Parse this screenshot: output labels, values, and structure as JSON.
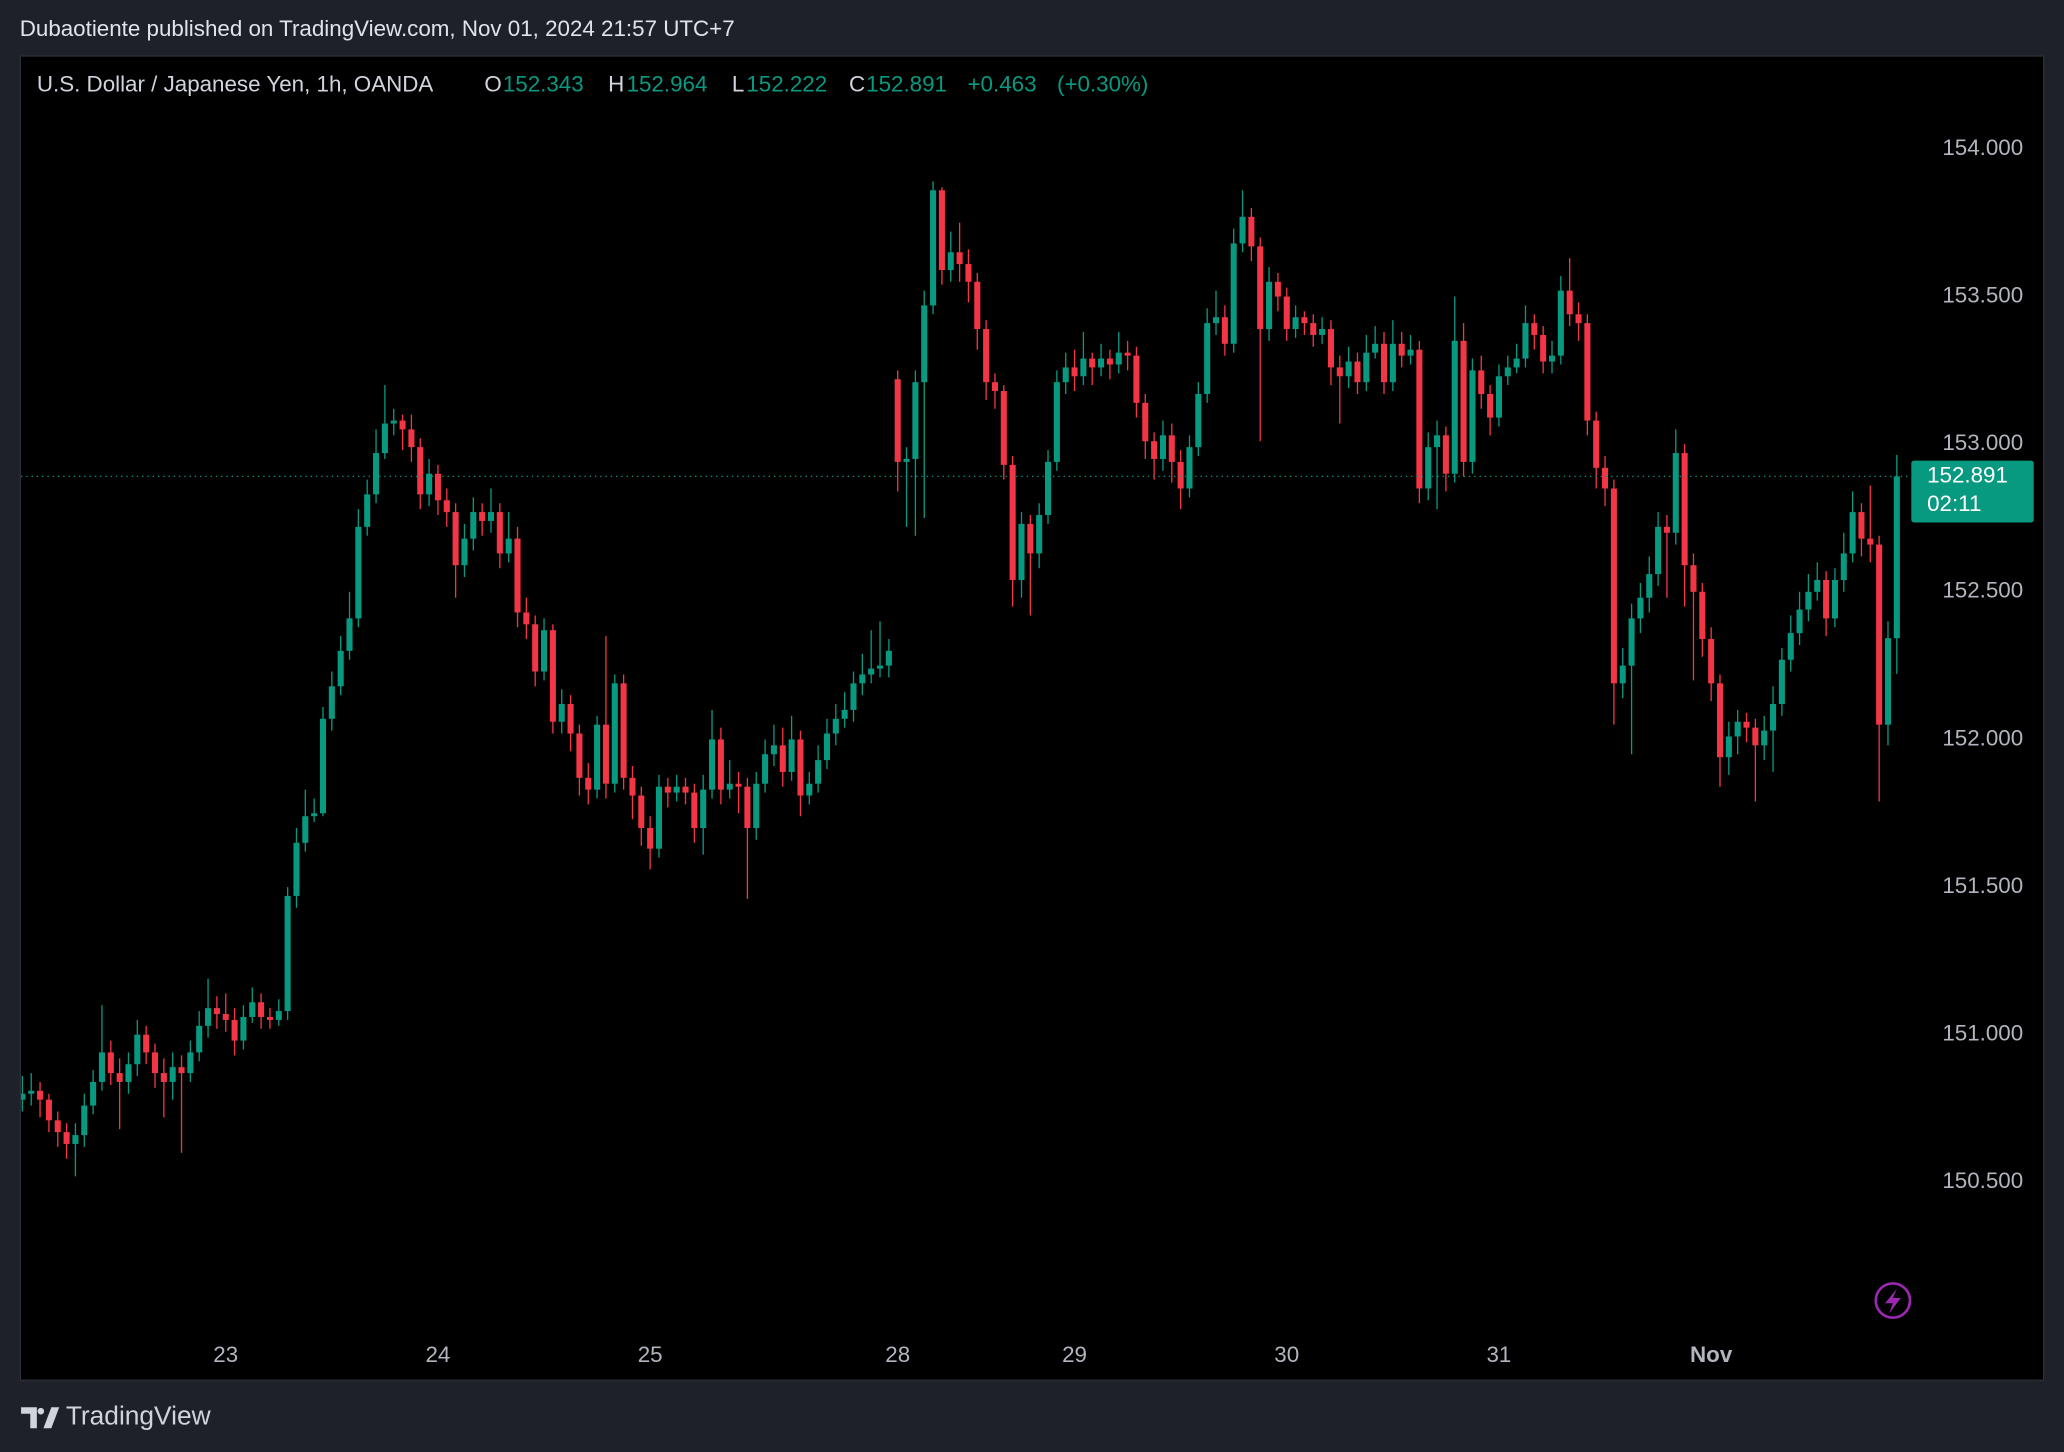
{
  "header": {
    "attribution": "Dubaotiente published on TradingView.com, Nov 01, 2024 21:57 UTC+7"
  },
  "footer": {
    "brand": "TradingView"
  },
  "chart_data": {
    "type": "candlestick",
    "symbol": "U.S. Dollar / Japanese Yen, 1h, OANDA",
    "legend_labels": {
      "open": "O",
      "high": "H",
      "low": "L",
      "close": "C"
    },
    "change": {
      "value": 0.463,
      "label": "+0.463"
    },
    "change_percent": {
      "value": 0.3,
      "label": "(+0.30%)"
    },
    "countdown": "02:11",
    "up_color": "#089981",
    "down_color": "#f23645",
    "grid": false,
    "ylim": [
      149.832,
      154.317
    ],
    "yticks": [
      {
        "value": 150.5,
        "label": "150.500"
      },
      {
        "value": 151,
        "label": "151.000"
      },
      {
        "value": 151.5,
        "label": "151.500"
      },
      {
        "value": 152,
        "label": "152.000"
      },
      {
        "value": 152.5,
        "label": "152.500"
      },
      {
        "value": 153,
        "label": "153.000"
      },
      {
        "value": 153.5,
        "label": "153.500"
      },
      {
        "value": 154,
        "label": "154.000"
      }
    ],
    "categories": [
      null,
      null,
      null,
      null,
      null,
      null,
      null,
      null,
      null,
      null,
      null,
      null,
      null,
      null,
      null,
      null,
      null,
      null,
      null,
      null,
      null,
      null,
      null,
      "23",
      null,
      null,
      null,
      null,
      null,
      null,
      null,
      null,
      null,
      null,
      null,
      null,
      null,
      null,
      null,
      null,
      null,
      null,
      null,
      null,
      null,
      null,
      null,
      "24",
      null,
      null,
      null,
      null,
      null,
      null,
      null,
      null,
      null,
      null,
      null,
      null,
      null,
      null,
      null,
      null,
      null,
      null,
      null,
      null,
      null,
      null,
      null,
      "25",
      null,
      null,
      null,
      null,
      null,
      null,
      null,
      null,
      null,
      null,
      null,
      null,
      null,
      null,
      null,
      null,
      null,
      null,
      null,
      null,
      null,
      null,
      null,
      null,
      null,
      null,
      null,
      "28",
      null,
      null,
      null,
      null,
      null,
      null,
      null,
      null,
      null,
      null,
      null,
      null,
      null,
      null,
      null,
      null,
      null,
      null,
      null,
      "29",
      null,
      null,
      null,
      null,
      null,
      null,
      null,
      null,
      null,
      null,
      null,
      null,
      null,
      null,
      null,
      null,
      null,
      null,
      null,
      null,
      null,
      null,
      null,
      "30",
      null,
      null,
      null,
      null,
      null,
      null,
      null,
      null,
      null,
      null,
      null,
      null,
      null,
      null,
      null,
      null,
      null,
      null,
      null,
      null,
      null,
      null,
      null,
      "31",
      null,
      null,
      null,
      null,
      null,
      null,
      null,
      null,
      null,
      null,
      null,
      null,
      null,
      null,
      null,
      null,
      null,
      null,
      null,
      null,
      null,
      null,
      null,
      "Nov",
      null,
      null,
      null,
      null,
      null,
      null,
      null,
      null,
      null,
      null,
      null,
      null,
      null,
      null,
      null,
      null,
      null,
      null,
      null,
      null,
      null
    ],
    "open": [
      150.78,
      150.8,
      150.81,
      150.78,
      150.71,
      150.67,
      150.63,
      150.66,
      150.76,
      150.84,
      150.94,
      150.87,
      150.84,
      150.9,
      151.0,
      150.94,
      150.87,
      150.84,
      150.89,
      150.87,
      150.94,
      151.03,
      151.09,
      151.07,
      151.05,
      150.98,
      151.06,
      151.11,
      151.06,
      151.05,
      151.08,
      151.47,
      151.65,
      151.74,
      151.75,
      152.07,
      152.18,
      152.3,
      152.41,
      152.72,
      152.83,
      152.97,
      153.07,
      153.08,
      153.05,
      152.99,
      152.83,
      152.9,
      152.81,
      152.77,
      152.59,
      152.68,
      152.77,
      152.74,
      152.77,
      152.63,
      152.68,
      152.43,
      152.39,
      152.23,
      152.37,
      152.06,
      152.12,
      152.02,
      151.87,
      151.83,
      152.05,
      151.85,
      152.19,
      151.87,
      151.81,
      151.7,
      151.63,
      151.84,
      151.82,
      151.84,
      151.82,
      151.7,
      151.83,
      152.0,
      151.83,
      151.85,
      151.84,
      151.7,
      151.85,
      151.95,
      151.98,
      151.89,
      152.0,
      151.81,
      151.85,
      151.93,
      152.02,
      152.07,
      152.1,
      152.19,
      152.22,
      152.24,
      152.25,
      153.22,
      152.94,
      152.95,
      153.21,
      153.47,
      153.86,
      153.59,
      153.65,
      153.61,
      153.55,
      153.39,
      153.21,
      153.18,
      152.93,
      152.54,
      152.73,
      152.63,
      152.76,
      152.94,
      153.21,
      153.26,
      153.23,
      153.29,
      153.26,
      153.29,
      153.27,
      153.31,
      153.3,
      153.14,
      153.01,
      152.95,
      153.03,
      152.94,
      152.85,
      152.99,
      153.17,
      153.41,
      153.43,
      153.34,
      153.68,
      153.77,
      153.67,
      153.39,
      153.55,
      153.5,
      153.39,
      153.43,
      153.41,
      153.37,
      153.39,
      153.26,
      153.23,
      153.28,
      153.21,
      153.31,
      153.34,
      153.21,
      153.34,
      153.3,
      153.32,
      152.85,
      152.99,
      153.03,
      152.9,
      153.35,
      152.94,
      153.25,
      153.17,
      153.09,
      153.23,
      153.26,
      153.29,
      153.41,
      153.37,
      153.28,
      153.3,
      153.52,
      153.44,
      153.41,
      153.08,
      152.92,
      152.85,
      152.19,
      152.25,
      152.41,
      152.48,
      152.56,
      152.72,
      152.7,
      152.97,
      152.59,
      152.5,
      152.34,
      152.19,
      151.94,
      152.01,
      152.06,
      152.04,
      151.98,
      152.03,
      152.12,
      152.27,
      152.36,
      152.44,
      152.5,
      152.54,
      152.41,
      152.54,
      152.63,
      152.77,
      152.68,
      152.66,
      152.05,
      152.343
    ],
    "high": [
      150.86,
      150.87,
      150.84,
      150.8,
      150.74,
      150.7,
      150.7,
      150.8,
      150.88,
      151.1,
      150.98,
      150.92,
      150.94,
      151.05,
      151.03,
      150.97,
      150.92,
      150.94,
      150.93,
      150.98,
      151.08,
      151.19,
      151.13,
      151.14,
      151.09,
      151.1,
      151.16,
      151.14,
      151.09,
      151.12,
      151.5,
      151.7,
      151.83,
      151.8,
      152.11,
      152.23,
      152.35,
      152.5,
      152.78,
      152.88,
      153.05,
      153.2,
      153.12,
      153.1,
      153.1,
      153.02,
      152.95,
      152.93,
      152.85,
      152.8,
      152.73,
      152.82,
      152.8,
      152.85,
      152.8,
      152.77,
      152.72,
      152.48,
      152.42,
      152.41,
      152.39,
      152.17,
      152.15,
      152.05,
      151.92,
      152.08,
      152.35,
      152.22,
      152.22,
      151.91,
      151.84,
      151.74,
      151.88,
      151.87,
      151.88,
      151.87,
      151.85,
      151.88,
      152.1,
      152.04,
      151.93,
      151.89,
      151.87,
      151.89,
      152.0,
      152.05,
      152.04,
      152.08,
      152.03,
      151.89,
      151.98,
      152.07,
      152.12,
      152.16,
      152.23,
      152.29,
      152.37,
      152.4,
      152.34,
      153.25,
      152.99,
      153.25,
      153.52,
      153.89,
      153.87,
      153.72,
      153.75,
      153.66,
      153.58,
      153.42,
      153.24,
      153.2,
      152.96,
      152.77,
      152.76,
      152.8,
      152.98,
      153.25,
      153.31,
      153.32,
      153.38,
      153.31,
      153.34,
      153.32,
      153.38,
      153.35,
      153.33,
      153.17,
      153.04,
      153.08,
      153.07,
      152.98,
      153.03,
      153.21,
      153.46,
      153.52,
      153.47,
      153.73,
      153.86,
      153.8,
      153.7,
      153.6,
      153.58,
      153.53,
      153.47,
      153.45,
      153.44,
      153.43,
      153.42,
      153.3,
      153.33,
      153.31,
      153.37,
      153.4,
      153.38,
      153.42,
      153.38,
      153.37,
      153.35,
      153.04,
      153.08,
      153.06,
      153.5,
      153.41,
      153.29,
      153.3,
      153.2,
      153.27,
      153.3,
      153.34,
      153.47,
      153.44,
      153.4,
      153.35,
      153.57,
      153.63,
      153.48,
      153.44,
      153.11,
      152.96,
      152.88,
      152.31,
      152.46,
      152.53,
      152.62,
      152.77,
      152.76,
      153.05,
      153.0,
      152.63,
      152.53,
      152.38,
      152.22,
      152.06,
      152.1,
      152.09,
      152.07,
      152.08,
      152.18,
      152.31,
      152.42,
      152.5,
      152.56,
      152.6,
      152.57,
      152.58,
      152.7,
      152.84,
      152.8,
      152.86,
      152.69,
      152.4,
      152.964
    ],
    "low": [
      150.74,
      150.76,
      150.72,
      150.67,
      150.62,
      150.58,
      150.52,
      150.62,
      150.73,
      150.81,
      150.83,
      150.68,
      150.8,
      150.86,
      150.9,
      150.82,
      150.72,
      150.78,
      150.6,
      150.84,
      150.91,
      150.99,
      151.02,
      151.01,
      150.93,
      150.95,
      151.04,
      151.02,
      151.02,
      151.03,
      151.05,
      151.43,
      151.62,
      151.72,
      151.74,
      152.03,
      152.15,
      152.27,
      152.38,
      152.69,
      152.8,
      152.95,
      153.03,
      152.98,
      152.94,
      152.78,
      152.79,
      152.76,
      152.72,
      152.48,
      152.55,
      152.64,
      152.69,
      152.7,
      152.58,
      152.6,
      152.38,
      152.34,
      152.18,
      152.2,
      152.02,
      152.02,
      151.96,
      151.81,
      151.78,
      151.8,
      151.8,
      151.82,
      151.83,
      151.73,
      151.64,
      151.56,
      151.6,
      151.77,
      151.79,
      151.78,
      151.65,
      151.61,
      151.8,
      151.78,
      151.8,
      151.75,
      151.46,
      151.66,
      151.82,
      151.91,
      151.84,
      151.86,
      151.74,
      151.78,
      151.82,
      151.9,
      151.98,
      152.04,
      152.06,
      152.15,
      152.19,
      152.21,
      152.21,
      152.84,
      152.72,
      152.69,
      152.75,
      153.44,
      153.54,
      153.55,
      153.55,
      153.48,
      153.32,
      153.15,
      153.12,
      152.88,
      152.45,
      152.48,
      152.42,
      152.58,
      152.73,
      152.91,
      153.17,
      153.18,
      153.2,
      153.2,
      153.23,
      153.22,
      153.24,
      153.25,
      153.09,
      152.95,
      152.88,
      152.91,
      152.87,
      152.78,
      152.82,
      152.96,
      153.14,
      153.37,
      153.3,
      153.31,
      153.65,
      153.62,
      153.01,
      153.35,
      153.45,
      153.35,
      153.36,
      153.37,
      153.33,
      153.34,
      153.2,
      153.07,
      153.19,
      153.17,
      153.18,
      153.29,
      153.17,
      153.18,
      153.26,
      153.27,
      152.8,
      152.81,
      152.78,
      152.84,
      152.87,
      152.89,
      152.9,
      153.12,
      153.03,
      153.06,
      153.2,
      153.24,
      153.26,
      153.32,
      153.24,
      153.24,
      153.27,
      153.4,
      153.35,
      153.03,
      152.85,
      152.79,
      152.05,
      152.14,
      151.95,
      152.36,
      152.43,
      152.52,
      152.48,
      152.66,
      152.45,
      152.2,
      152.28,
      152.13,
      151.84,
      151.88,
      151.95,
      151.99,
      151.79,
      151.93,
      151.89,
      152.08,
      152.23,
      152.32,
      152.4,
      152.47,
      152.35,
      152.38,
      152.5,
      152.6,
      152.62,
      152.6,
      151.79,
      151.98,
      152.222
    ],
    "close": [
      150.8,
      150.81,
      150.78,
      150.71,
      150.67,
      150.63,
      150.66,
      150.76,
      150.84,
      150.94,
      150.87,
      150.84,
      150.9,
      151.0,
      150.94,
      150.87,
      150.84,
      150.89,
      150.87,
      150.94,
      151.03,
      151.09,
      151.07,
      151.05,
      150.98,
      151.06,
      151.11,
      151.06,
      151.05,
      151.08,
      151.47,
      151.65,
      151.74,
      151.75,
      152.07,
      152.18,
      152.3,
      152.41,
      152.72,
      152.83,
      152.97,
      153.07,
      153.08,
      153.05,
      152.99,
      152.83,
      152.9,
      152.81,
      152.77,
      152.59,
      152.68,
      152.77,
      152.74,
      152.77,
      152.63,
      152.68,
      152.43,
      152.39,
      152.23,
      152.37,
      152.06,
      152.12,
      152.02,
      151.87,
      151.83,
      152.05,
      151.85,
      152.19,
      151.87,
      151.81,
      151.7,
      151.63,
      151.84,
      151.82,
      151.84,
      151.82,
      151.7,
      151.83,
      152.0,
      151.83,
      151.85,
      151.84,
      151.7,
      151.85,
      151.95,
      151.98,
      151.89,
      152.0,
      151.81,
      151.85,
      151.93,
      152.02,
      152.07,
      152.1,
      152.19,
      152.22,
      152.24,
      152.25,
      152.3,
      152.94,
      152.95,
      153.21,
      153.47,
      153.86,
      153.59,
      153.65,
      153.61,
      153.55,
      153.39,
      153.21,
      153.18,
      152.93,
      152.54,
      152.73,
      152.63,
      152.76,
      152.94,
      153.21,
      153.26,
      153.23,
      153.29,
      153.26,
      153.29,
      153.27,
      153.31,
      153.3,
      153.14,
      153.01,
      152.95,
      153.03,
      152.94,
      152.85,
      152.99,
      153.17,
      153.41,
      153.43,
      153.34,
      153.68,
      153.77,
      153.67,
      153.39,
      153.55,
      153.5,
      153.39,
      153.43,
      153.41,
      153.37,
      153.39,
      153.26,
      153.23,
      153.28,
      153.21,
      153.31,
      153.34,
      153.21,
      153.34,
      153.3,
      153.32,
      152.85,
      152.99,
      153.03,
      152.9,
      153.35,
      152.94,
      153.25,
      153.17,
      153.09,
      153.23,
      153.26,
      153.29,
      153.41,
      153.37,
      153.28,
      153.3,
      153.52,
      153.44,
      153.41,
      153.08,
      152.92,
      152.85,
      152.19,
      152.25,
      152.41,
      152.48,
      152.56,
      152.72,
      152.7,
      152.97,
      152.59,
      152.5,
      152.34,
      152.19,
      151.94,
      152.01,
      152.06,
      152.04,
      151.98,
      152.03,
      152.12,
      152.27,
      152.36,
      152.44,
      152.5,
      152.54,
      152.41,
      152.54,
      152.63,
      152.77,
      152.68,
      152.66,
      152.05,
      152.343,
      152.891
    ]
  }
}
